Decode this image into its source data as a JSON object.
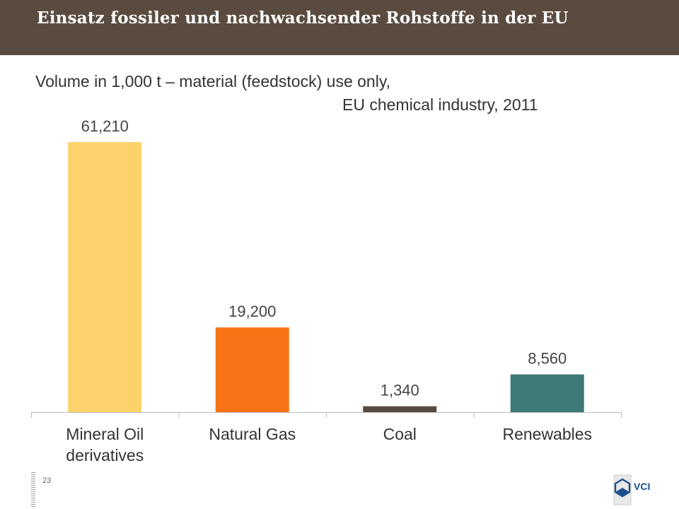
{
  "header": {
    "title": "Einsatz fossiler und nachwachsender Rohstoffe in der EU"
  },
  "subtitle": {
    "line1": "Volume in 1,000 t – material (feedstock) use only,",
    "line2": "EU chemical industry, 2011"
  },
  "footer": {
    "page_number": "23",
    "logo_text": "VCI"
  },
  "chart_data": {
    "type": "bar",
    "categories": [
      [
        "Mineral Oil",
        "derivatives"
      ],
      [
        "Natural Gas"
      ],
      [
        "Coal"
      ],
      [
        "Renewables"
      ]
    ],
    "values": [
      61210,
      19200,
      1340,
      8560
    ],
    "data_labels": [
      "61,210",
      "19,200",
      "1,340",
      "8,560"
    ],
    "colors": [
      "#fcd36a",
      "#f97316",
      "#5a4b40",
      "#3d7a78"
    ],
    "ylim": [
      0,
      61210
    ],
    "grid": false,
    "legend": "none"
  }
}
